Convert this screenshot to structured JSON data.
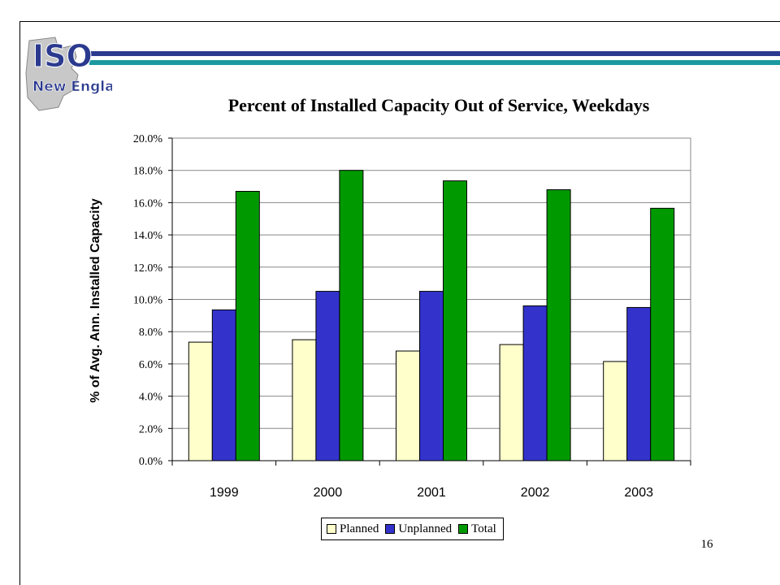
{
  "slide": {
    "logo_text_top": "ISO",
    "logo_text_bottom": "New England",
    "page_number": "16",
    "colors": {
      "band_navy": "#2b3a8f",
      "band_teal": "#1a9aa0"
    }
  },
  "chart_data": {
    "type": "bar",
    "title": "Percent of Installed Capacity Out of Service, Weekdays",
    "xlabel": "",
    "ylabel": "% of Avg. Ann. Installed Capacity",
    "categories": [
      "1999",
      "2000",
      "2001",
      "2002",
      "2003"
    ],
    "series": [
      {
        "name": "Planned",
        "color": "#ffffcc",
        "values": [
          7.35,
          7.5,
          6.8,
          7.2,
          6.15
        ]
      },
      {
        "name": "Unplanned",
        "color": "#3333cc",
        "values": [
          9.35,
          10.5,
          10.5,
          9.6,
          9.5
        ]
      },
      {
        "name": "Total",
        "color": "#009900",
        "values": [
          16.7,
          18.0,
          17.35,
          16.8,
          15.65
        ]
      }
    ],
    "ylim": [
      0,
      20
    ],
    "yticks": [
      "0.0%",
      "2.0%",
      "4.0%",
      "6.0%",
      "8.0%",
      "10.0%",
      "12.0%",
      "14.0%",
      "16.0%",
      "18.0%",
      "20.0%"
    ],
    "grid": true,
    "legend": "bottom"
  }
}
